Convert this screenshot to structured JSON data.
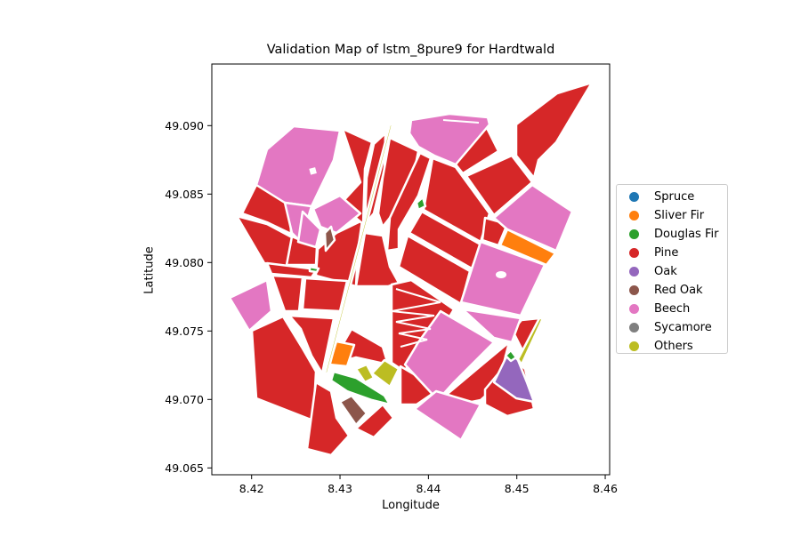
{
  "chart_data": {
    "type": "map",
    "title": "Validation Map of lstm_8pure9 for Hardtwald",
    "xlabel": "Longitude",
    "ylabel": "Latitude",
    "xlim": [
      8.4155,
      8.4605
    ],
    "ylim": [
      49.0645,
      49.0945
    ],
    "xticks": [
      "8.42",
      "8.43",
      "8.44",
      "8.45",
      "8.46"
    ],
    "yticks": [
      "49.065",
      "49.070",
      "49.075",
      "49.080",
      "49.085",
      "49.090"
    ],
    "legend_position": "right",
    "legend": [
      {
        "name": "Spruce",
        "color": "#1f77b4"
      },
      {
        "name": "Sliver Fir",
        "color": "#ff7f0e"
      },
      {
        "name": "Douglas Fir",
        "color": "#2ca02c"
      },
      {
        "name": "Pine",
        "color": "#d62728"
      },
      {
        "name": "Oak",
        "color": "#9467bd"
      },
      {
        "name": "Red Oak",
        "color": "#8c564b"
      },
      {
        "name": "Beech",
        "color": "#e377c2"
      },
      {
        "name": "Sycamore",
        "color": "#7f7f7f"
      },
      {
        "name": "Others",
        "color": "#bcbd22"
      }
    ]
  }
}
